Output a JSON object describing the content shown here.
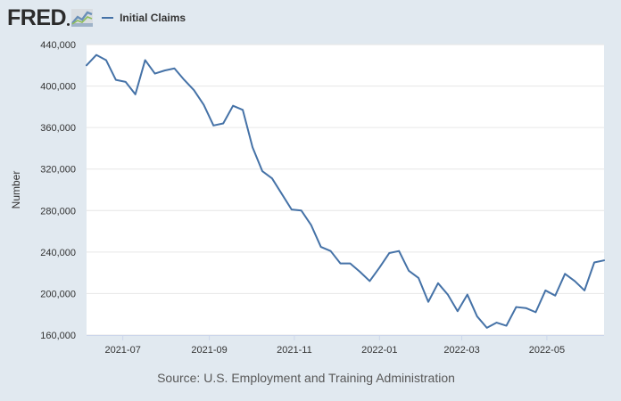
{
  "header": {
    "logo_text": "FRED",
    "logo_icon": "trend-line-chart-icon",
    "legend_label": "Initial Claims",
    "series_color": "#4572a7"
  },
  "colors": {
    "background": "#e1e9f0",
    "plot_background": "#ffffff",
    "gridline": "#e6e6e6",
    "text": "#333333"
  },
  "source": "Source: U.S. Employment and Training Administration",
  "chart_data": {
    "type": "line",
    "title": "",
    "xlabel": "",
    "ylabel": "Number",
    "ylim": [
      160000,
      440000
    ],
    "yticks": [
      160000,
      200000,
      240000,
      280000,
      320000,
      360000,
      400000,
      440000
    ],
    "ytick_labels": [
      "160,000",
      "200,000",
      "240,000",
      "280,000",
      "320,000",
      "360,000",
      "400,000",
      "440,000"
    ],
    "xlim": [
      "2021-06-05",
      "2022-06-11"
    ],
    "xticks": [
      "2021-07-01",
      "2021-09-01",
      "2021-11-01",
      "2022-01-01",
      "2022-03-01",
      "2022-05-01"
    ],
    "xtick_labels": [
      "2021-07",
      "2021-09",
      "2021-11",
      "2022-01",
      "2022-03",
      "2022-05"
    ],
    "grid": true,
    "legend": "top-left",
    "series": [
      {
        "name": "Initial Claims",
        "color": "#4572a7",
        "x": [
          "2021-06-05",
          "2021-06-12",
          "2021-06-19",
          "2021-06-26",
          "2021-07-03",
          "2021-07-10",
          "2021-07-17",
          "2021-07-24",
          "2021-07-31",
          "2021-08-07",
          "2021-08-14",
          "2021-08-21",
          "2021-08-28",
          "2021-09-04",
          "2021-09-11",
          "2021-09-18",
          "2021-09-25",
          "2021-10-02",
          "2021-10-09",
          "2021-10-16",
          "2021-10-23",
          "2021-10-30",
          "2021-11-06",
          "2021-11-13",
          "2021-11-20",
          "2021-11-27",
          "2021-12-04",
          "2021-12-11",
          "2021-12-18",
          "2021-12-25",
          "2022-01-01",
          "2022-01-08",
          "2022-01-15",
          "2022-01-22",
          "2022-01-29",
          "2022-02-05",
          "2022-02-12",
          "2022-02-19",
          "2022-02-26",
          "2022-03-05",
          "2022-03-12",
          "2022-03-19",
          "2022-03-26",
          "2022-04-02",
          "2022-04-09",
          "2022-04-16",
          "2022-04-23",
          "2022-04-30",
          "2022-05-07",
          "2022-05-14",
          "2022-05-21",
          "2022-05-28",
          "2022-06-04",
          "2022-06-11"
        ],
        "values": [
          420000,
          430000,
          425000,
          406000,
          404000,
          392000,
          425000,
          412000,
          415000,
          417000,
          406000,
          396000,
          382000,
          362000,
          364000,
          381000,
          377000,
          341000,
          318000,
          311000,
          296000,
          281000,
          280000,
          266000,
          245000,
          241000,
          229000,
          229000,
          221000,
          212000,
          225000,
          239000,
          241000,
          222000,
          215000,
          192000,
          210000,
          199000,
          183000,
          199000,
          178000,
          167000,
          172000,
          169000,
          187000,
          186000,
          182000,
          203000,
          198000,
          219000,
          212000,
          203000,
          230000,
          232000
        ]
      }
    ]
  }
}
